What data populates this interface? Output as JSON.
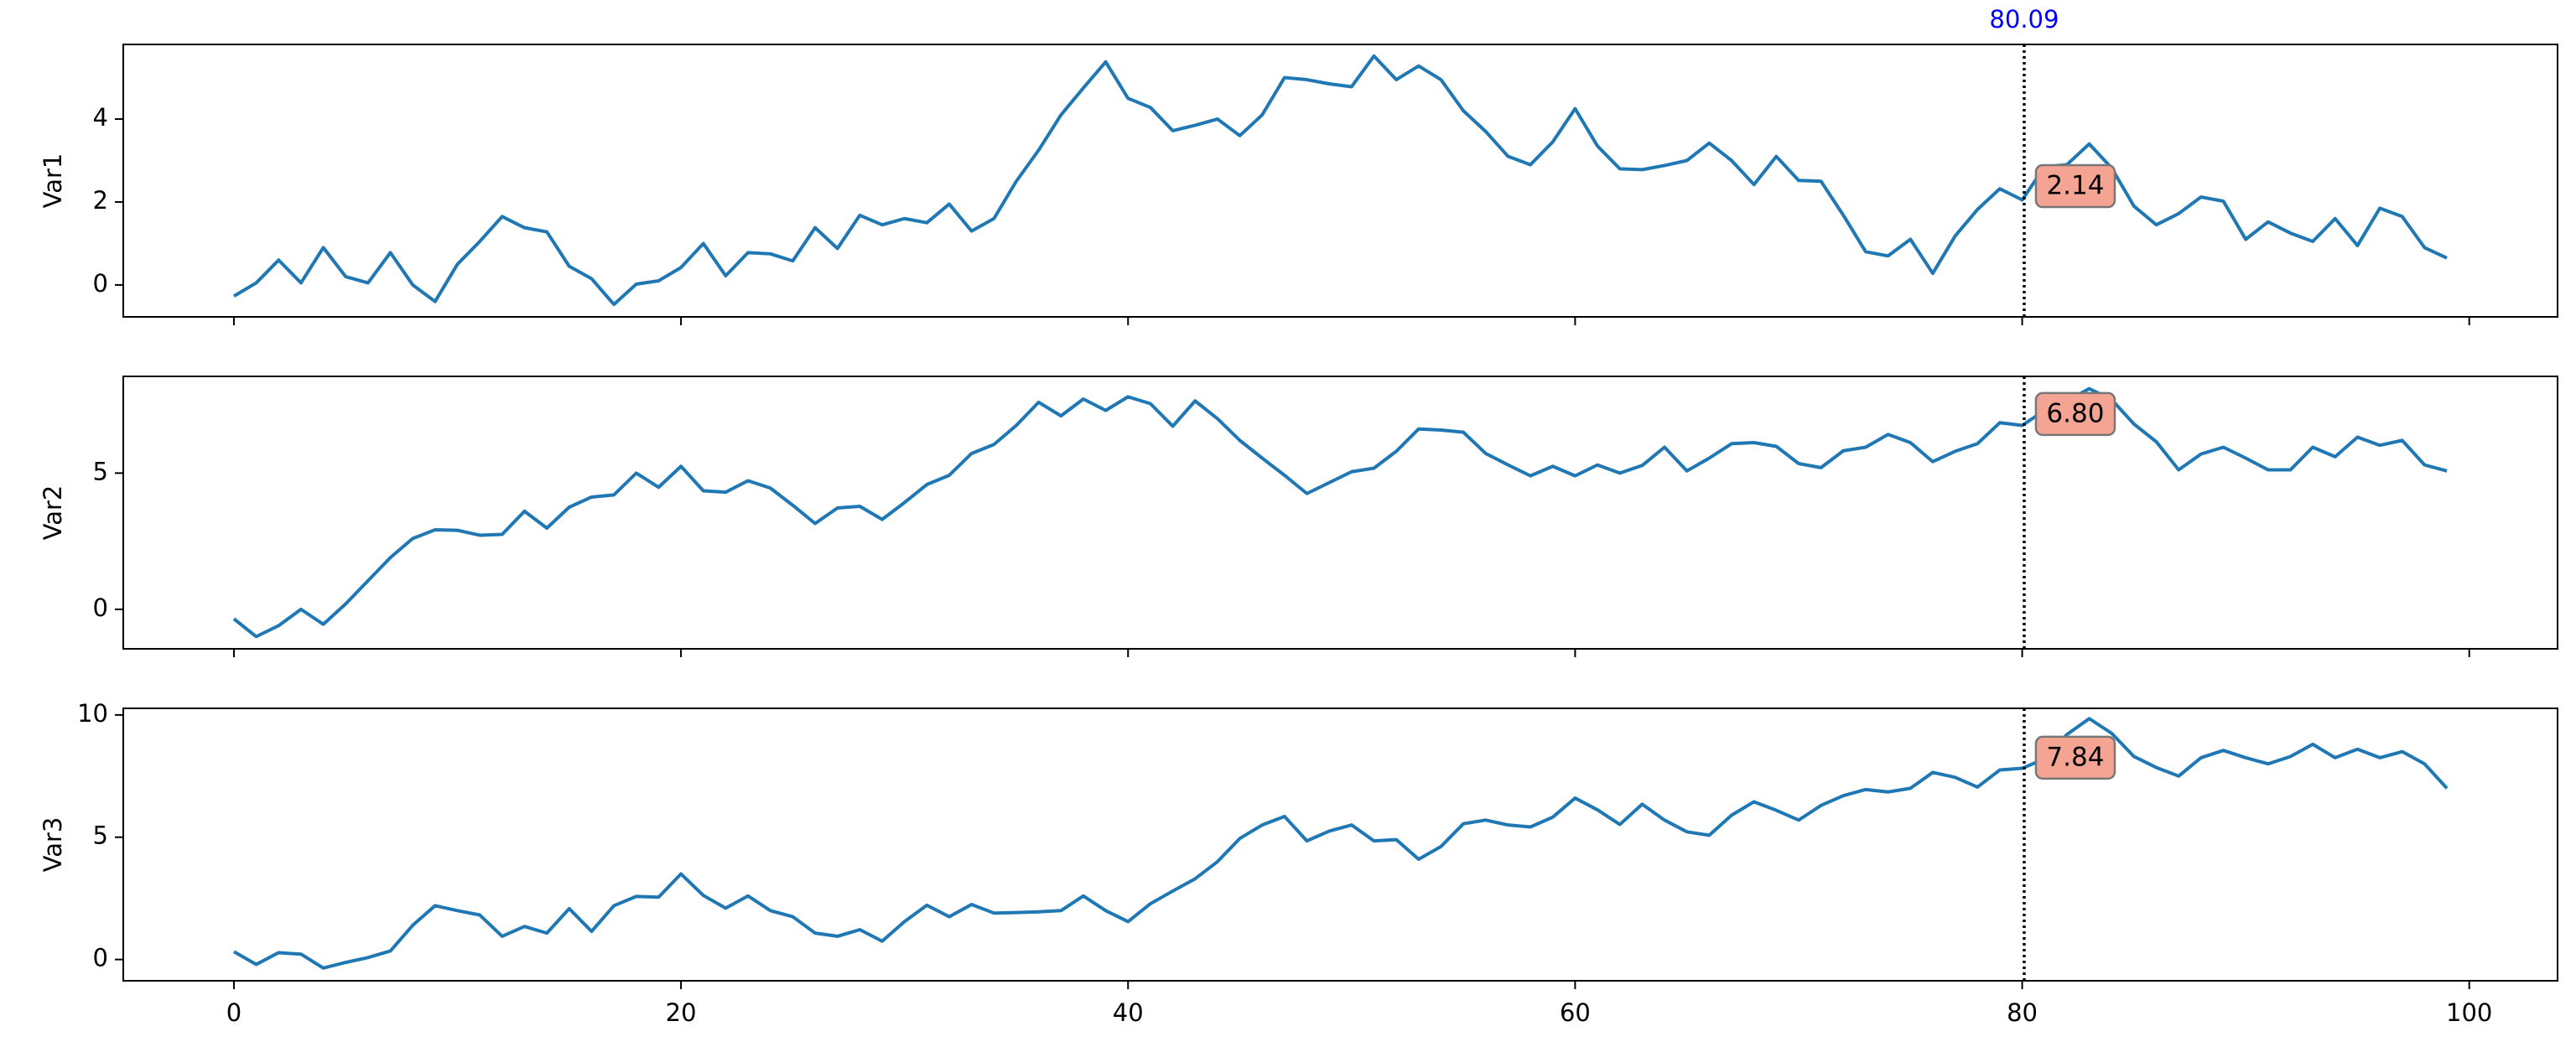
{
  "chart_data": [
    {
      "type": "line",
      "ylabel": "Var1",
      "color": "#1f77b4",
      "x": [
        0,
        1,
        2,
        3,
        4,
        5,
        6,
        7,
        8,
        9,
        10,
        11,
        12,
        13,
        14,
        15,
        16,
        17,
        18,
        19,
        20,
        21,
        22,
        23,
        24,
        25,
        26,
        27,
        28,
        29,
        30,
        31,
        32,
        33,
        34,
        35,
        36,
        37,
        38,
        39,
        40,
        41,
        42,
        43,
        44,
        45,
        46,
        47,
        48,
        49,
        50,
        51,
        52,
        53,
        54,
        55,
        56,
        57,
        58,
        59,
        60,
        61,
        62,
        63,
        64,
        65,
        66,
        67,
        68,
        69,
        70,
        71,
        72,
        73,
        74,
        75,
        76,
        77,
        78,
        79,
        80,
        81,
        82,
        83,
        84,
        85,
        86,
        87,
        88,
        89,
        90,
        91,
        92,
        93,
        94,
        95,
        96,
        97,
        98,
        99
      ],
      "values": [
        -0.27,
        0.05,
        0.6,
        0.05,
        0.9,
        0.2,
        0.05,
        0.78,
        0.0,
        -0.4,
        0.5,
        1.05,
        1.65,
        1.38,
        1.28,
        0.45,
        0.15,
        -0.47,
        0.02,
        0.1,
        0.42,
        1.0,
        0.22,
        0.78,
        0.75,
        0.58,
        1.38,
        0.88,
        1.68,
        1.45,
        1.6,
        1.5,
        1.95,
        1.3,
        1.6,
        2.5,
        3.25,
        4.1,
        4.75,
        5.38,
        4.5,
        4.28,
        3.72,
        3.85,
        4.0,
        3.6,
        4.1,
        5.0,
        4.95,
        4.85,
        4.78,
        5.52,
        4.95,
        5.28,
        4.95,
        4.2,
        3.7,
        3.1,
        2.9,
        3.45,
        4.25,
        3.35,
        2.8,
        2.78,
        2.88,
        3.0,
        3.42,
        3.0,
        2.42,
        3.1,
        2.52,
        2.5,
        1.68,
        0.8,
        0.7,
        1.1,
        0.28,
        1.18,
        1.82,
        2.32,
        2.05,
        2.85,
        2.9,
        3.4,
        2.82,
        1.9,
        1.45,
        1.72,
        2.12,
        2.02,
        1.1,
        1.52,
        1.25,
        1.05,
        1.6,
        0.95,
        1.85,
        1.65,
        0.9,
        0.65
      ],
      "xlim": [
        -4.95,
        103.95
      ],
      "xticks": [
        0,
        20,
        40,
        60,
        80,
        100
      ],
      "ylim": [
        -0.77,
        5.8
      ],
      "yticks": [
        0,
        2,
        4
      ],
      "cursor_x": 80.09,
      "cursor_value": 2.14
    },
    {
      "type": "line",
      "ylabel": "Var2",
      "color": "#1f77b4",
      "x": [
        0,
        1,
        2,
        3,
        4,
        5,
        6,
        7,
        8,
        9,
        10,
        11,
        12,
        13,
        14,
        15,
        16,
        17,
        18,
        19,
        20,
        21,
        22,
        23,
        24,
        25,
        26,
        27,
        28,
        29,
        30,
        31,
        32,
        33,
        34,
        35,
        36,
        37,
        38,
        39,
        40,
        41,
        42,
        43,
        44,
        45,
        46,
        47,
        48,
        49,
        50,
        51,
        52,
        53,
        54,
        55,
        56,
        57,
        58,
        59,
        60,
        61,
        62,
        63,
        64,
        65,
        66,
        67,
        68,
        69,
        70,
        71,
        72,
        73,
        74,
        75,
        76,
        77,
        78,
        79,
        80,
        81,
        82,
        83,
        84,
        85,
        86,
        87,
        88,
        89,
        90,
        91,
        92,
        93,
        94,
        95,
        96,
        97,
        98,
        99
      ],
      "values": [
        -0.35,
        -1.0,
        -0.6,
        0.0,
        -0.55,
        0.2,
        1.05,
        1.9,
        2.6,
        2.92,
        2.9,
        2.72,
        2.75,
        3.6,
        2.98,
        3.75,
        4.12,
        4.2,
        5.0,
        4.48,
        5.25,
        4.35,
        4.3,
        4.72,
        4.45,
        3.82,
        3.15,
        3.72,
        3.78,
        3.3,
        3.92,
        4.58,
        4.92,
        5.72,
        6.05,
        6.75,
        7.6,
        7.1,
        7.72,
        7.3,
        7.8,
        7.55,
        6.72,
        7.65,
        7.0,
        6.2,
        5.55,
        4.92,
        4.25,
        4.65,
        5.05,
        5.18,
        5.8,
        6.62,
        6.58,
        6.5,
        5.72,
        5.3,
        4.9,
        5.25,
        4.9,
        5.3,
        5.0,
        5.28,
        5.95,
        5.08,
        5.55,
        6.08,
        6.12,
        5.98,
        5.35,
        5.2,
        5.82,
        5.95,
        6.42,
        6.12,
        5.42,
        5.8,
        6.08,
        6.85,
        6.75,
        7.3,
        7.65,
        8.1,
        7.7,
        6.8,
        6.15,
        5.12,
        5.7,
        5.95,
        5.55,
        5.12,
        5.12,
        5.95,
        5.6,
        6.32,
        6.02,
        6.2,
        5.3,
        5.08
      ],
      "xlim": [
        -4.95,
        103.95
      ],
      "xticks": [
        0,
        20,
        40,
        60,
        80,
        100
      ],
      "ylim": [
        -1.45,
        8.55
      ],
      "yticks": [
        0,
        5
      ],
      "cursor_x": 80.09,
      "cursor_value": {
        "value": 6.8,
        "label": "6.80"
      }
    },
    {
      "type": "line",
      "ylabel": "Var3",
      "color": "#1f77b4",
      "x": [
        0,
        1,
        2,
        3,
        4,
        5,
        6,
        7,
        8,
        9,
        10,
        11,
        12,
        13,
        14,
        15,
        16,
        17,
        18,
        19,
        20,
        21,
        22,
        23,
        24,
        25,
        26,
        27,
        28,
        29,
        30,
        31,
        32,
        33,
        34,
        35,
        36,
        37,
        38,
        39,
        40,
        41,
        42,
        43,
        44,
        45,
        46,
        47,
        48,
        49,
        50,
        51,
        52,
        53,
        54,
        55,
        56,
        57,
        58,
        59,
        60,
        61,
        62,
        63,
        64,
        65,
        66,
        67,
        68,
        69,
        70,
        71,
        72,
        73,
        74,
        75,
        76,
        77,
        78,
        79,
        80,
        81,
        82,
        83,
        84,
        85,
        86,
        87,
        88,
        89,
        90,
        91,
        92,
        93,
        94,
        95,
        96,
        97,
        98,
        99
      ],
      "values": [
        0.32,
        -0.2,
        0.28,
        0.22,
        -0.35,
        -0.12,
        0.08,
        0.35,
        1.4,
        2.2,
        2.0,
        1.82,
        0.95,
        1.35,
        1.08,
        2.08,
        1.15,
        2.2,
        2.58,
        2.55,
        3.5,
        2.62,
        2.1,
        2.6,
        2.0,
        1.75,
        1.08,
        0.95,
        1.22,
        0.75,
        1.55,
        2.22,
        1.75,
        2.25,
        1.9,
        1.92,
        1.95,
        2.0,
        2.6,
        2.0,
        1.55,
        2.28,
        2.8,
        3.3,
        4.0,
        4.95,
        5.5,
        5.85,
        4.85,
        5.25,
        5.5,
        4.85,
        4.9,
        4.1,
        4.62,
        5.55,
        5.7,
        5.5,
        5.42,
        5.82,
        6.6,
        6.12,
        5.52,
        6.35,
        5.7,
        5.22,
        5.08,
        5.9,
        6.45,
        6.1,
        5.7,
        6.3,
        6.7,
        6.95,
        6.85,
        7.0,
        7.65,
        7.45,
        7.05,
        7.75,
        7.82,
        8.2,
        9.2,
        9.85,
        9.25,
        8.3,
        7.85,
        7.5,
        8.25,
        8.55,
        8.25,
        8.0,
        8.3,
        8.8,
        8.25,
        8.6,
        8.25,
        8.5,
        8.0,
        7.0
      ],
      "xlim": [
        -4.95,
        103.95
      ],
      "xticks": [
        0,
        20,
        40,
        60,
        80,
        100
      ],
      "ylim": [
        -0.87,
        10.27
      ],
      "yticks": [
        0,
        5,
        10
      ],
      "cursor_x": 80.09,
      "cursor_value": 7.84
    }
  ]
}
